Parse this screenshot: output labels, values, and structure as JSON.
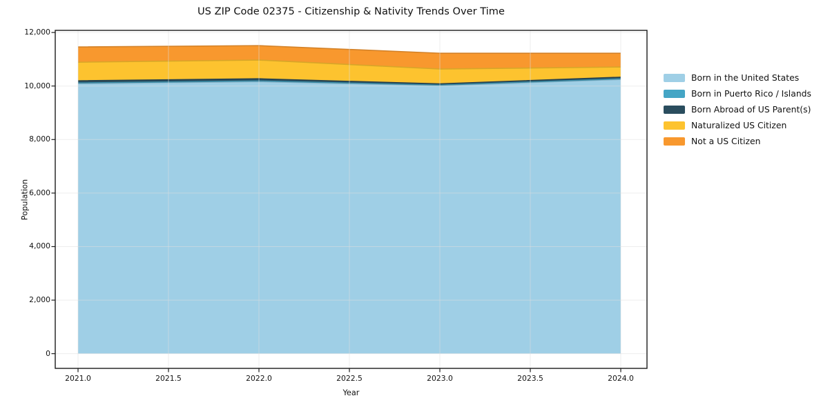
{
  "figure": {
    "background": "#ffffff",
    "spine_color": "#1a1a1a",
    "grid_color": "#dedede"
  },
  "chart_data": {
    "type": "area",
    "stacked": true,
    "title": "US ZIP Code 02375 - Citizenship & Nativity Trends Over Time",
    "xlabel": "Year",
    "ylabel": "Population",
    "x": [
      2021,
      2022,
      2023,
      2024
    ],
    "series": [
      {
        "name": "Born in the United States",
        "color": "#9FCFE6",
        "values": [
          10090,
          10165,
          10015,
          10245
        ]
      },
      {
        "name": "Born in Puerto Rico / Islands",
        "color": "#44A5C5",
        "values": [
          25,
          25,
          20,
          25
        ]
      },
      {
        "name": "Born Abroad of US Parent(s)",
        "color": "#2A4D5E",
        "values": [
          80,
          80,
          45,
          60
        ]
      },
      {
        "name": "Naturalized US Citizen",
        "color": "#FDC32F",
        "values": [
          695,
          700,
          555,
          380
        ]
      },
      {
        "name": "Not a US Citizen",
        "color": "#F8982E",
        "values": [
          570,
          540,
          590,
          515
        ]
      }
    ],
    "stack_totals": [
      11460,
      11510,
      11225,
      11225
    ],
    "xlim": [
      2020.874,
      2024.145
    ],
    "ylim": [
      -550,
      12080
    ],
    "xticks": {
      "values": [
        2021,
        2021.5,
        2022,
        2022.5,
        2023,
        2023.5,
        2024
      ],
      "labels": [
        "2021.0",
        "2021.5",
        "2022.0",
        "2022.5",
        "2023.0",
        "2023.5",
        "2024.0"
      ]
    },
    "yticks": {
      "values": [
        0,
        2000,
        4000,
        6000,
        8000,
        10000,
        12000
      ],
      "labels": [
        "0",
        "2,000",
        "4,000",
        "6,000",
        "8,000",
        "10,000",
        "12,000"
      ]
    },
    "grid": true,
    "legend_position": "right-outside"
  }
}
